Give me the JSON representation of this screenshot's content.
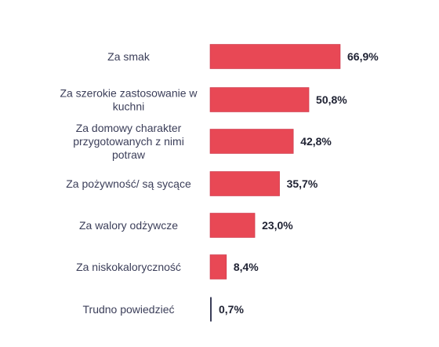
{
  "chart_data": {
    "type": "bar",
    "orientation": "horizontal",
    "categories": [
      "Za smak",
      "Za szerokie zastosowanie w kuchni",
      "Za domowy charakter przygotowanych z nimi potraw",
      "Za pożywność/ są sycące",
      "Za walory odżywcze",
      "Za niskokaloryczność",
      "Trudno powiedzieć"
    ],
    "category_lines": [
      [
        "Za smak"
      ],
      [
        "Za szerokie zastosowanie w",
        "kuchni"
      ],
      [
        "Za domowy charakter",
        "przygotowanych z nimi",
        "potraw"
      ],
      [
        "Za pożywność/ są sycące"
      ],
      [
        "Za walory odżywcze"
      ],
      [
        "Za niskokaloryczność"
      ],
      [
        "Trudno powiedzieć"
      ]
    ],
    "values": [
      66.9,
      50.8,
      42.8,
      35.7,
      23.0,
      8.4,
      0.7
    ],
    "value_labels": [
      "66,9%",
      "50,8%",
      "42,8%",
      "35,7%",
      "23,0%",
      "8,4%",
      "0,7%"
    ],
    "xlim": [
      0,
      70
    ],
    "grid": false,
    "legend": "none",
    "title": "",
    "xlabel": "",
    "ylabel": ""
  },
  "colors": {
    "bar": "#e84855",
    "bar_edge": "#c9374a",
    "small_bar": "#3b3e59",
    "category_text": "#3b3e59",
    "value_text": "#1f2233",
    "background": "#ffffff"
  }
}
